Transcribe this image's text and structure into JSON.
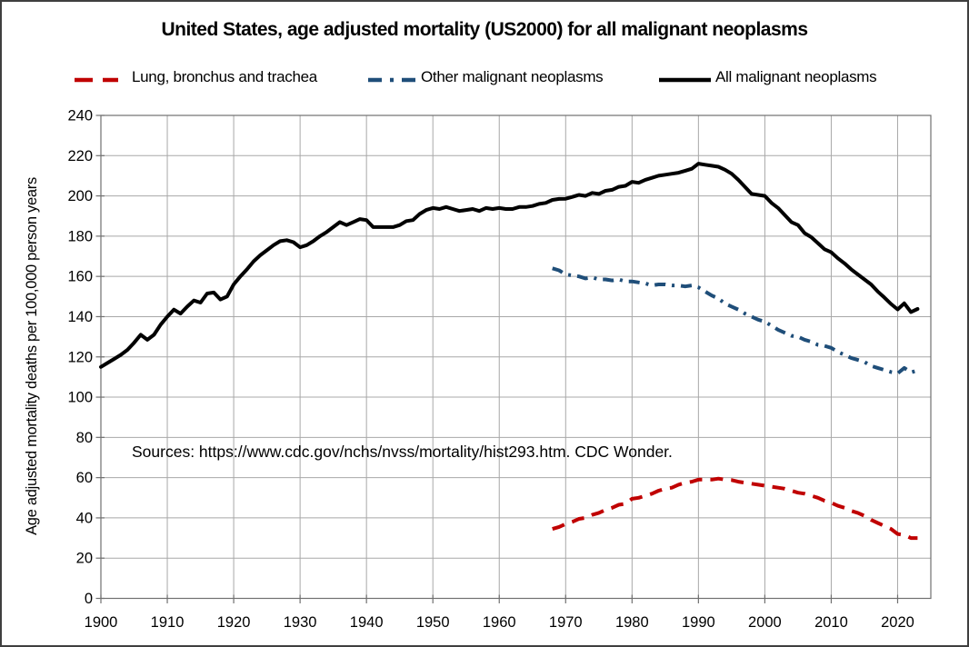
{
  "chart_data": {
    "type": "line",
    "title": "United States, age adjusted mortality (US2000) for all malignant neoplasms",
    "xlabel": "",
    "ylabel": "Age adjusted mortality deaths per 100,000 person years",
    "annotation": "Sources: https://www.cdc.gov/nchs/nvss/mortality/hist293.htm. CDC Wonder.",
    "xlim": [
      1900,
      2025
    ],
    "ylim": [
      0,
      240
    ],
    "grid": true,
    "legend_position": "top",
    "x_ticks": [
      1900,
      1910,
      1920,
      1930,
      1940,
      1950,
      1960,
      1970,
      1980,
      1990,
      2000,
      2010,
      2020
    ],
    "y_ticks": [
      0,
      20,
      40,
      60,
      80,
      100,
      120,
      140,
      160,
      180,
      200,
      220,
      240
    ],
    "colors": {
      "lung": "#C00000",
      "other": "#1F4E79",
      "all": "#000000",
      "gridline": "#A8A8A8",
      "axis": "#707070"
    },
    "series": [
      {
        "id": "lung",
        "name": "Lung, bronchus and trachea",
        "color": "#C00000",
        "style": "dashed",
        "start_year": 1968,
        "values": [
          34.5,
          35.5,
          37,
          38,
          39.5,
          40,
          41.5,
          42.5,
          44,
          45,
          46.5,
          47,
          49.5,
          50,
          51,
          52,
          53.5,
          54.5,
          55,
          56.5,
          57.5,
          58,
          59,
          59,
          59,
          59.5,
          59,
          58.8,
          58,
          57.5,
          57,
          56.5,
          56,
          55.5,
          55,
          54.5,
          53.5,
          52.5,
          52,
          51,
          50,
          48.5,
          47.5,
          46,
          45,
          43.5,
          42.5,
          41,
          39,
          37.5,
          36,
          34.5,
          32,
          31.5,
          30,
          30
        ]
      },
      {
        "id": "other",
        "name": "Other malignant neoplasms",
        "color": "#1F4E79",
        "style": "dash-dot",
        "start_year": 1968,
        "values": [
          164,
          163,
          161,
          160.5,
          160,
          159,
          159.5,
          158.5,
          158.5,
          158,
          158.5,
          157.5,
          157.5,
          157,
          156.5,
          155.5,
          156,
          156,
          155.5,
          155.5,
          155,
          155.5,
          154.5,
          152.5,
          150.5,
          149,
          146.5,
          145,
          143.5,
          141.5,
          140,
          138.5,
          137.5,
          135.5,
          133.5,
          132,
          130.5,
          130,
          128.5,
          127.5,
          126,
          125.5,
          124.5,
          122.5,
          121,
          119.5,
          118.5,
          117.5,
          115.5,
          114.5,
          113.5,
          112.5,
          111.8,
          114.5,
          112.3,
          113.3
        ]
      },
      {
        "id": "all",
        "name": "All malignant neoplasms",
        "color": "#000000",
        "style": "solid",
        "start_year": 1900,
        "values": [
          115,
          117,
          119,
          121,
          123.5,
          127,
          131,
          128.5,
          131,
          136,
          140,
          143.5,
          141.5,
          145,
          148,
          147,
          151.5,
          152,
          148.5,
          150,
          156,
          160,
          163.5,
          167.5,
          170.5,
          173,
          175.5,
          177.5,
          178,
          177,
          174.5,
          175.5,
          177.5,
          180,
          182,
          184.5,
          187,
          185.5,
          187,
          188.5,
          188,
          184.5,
          184.5,
          184.5,
          184.5,
          185.5,
          187.5,
          188,
          191,
          193,
          194,
          193.5,
          194.5,
          193.5,
          192.5,
          193,
          193.5,
          192.5,
          194,
          193.5,
          194,
          193.5,
          193.5,
          194.5,
          194.5,
          195,
          196,
          196.5,
          198,
          198.5,
          198.6,
          199.5,
          200.5,
          200,
          201.5,
          201,
          202.5,
          203,
          204.5,
          205,
          207,
          206.5,
          208,
          209,
          210,
          210.5,
          211,
          211.5,
          212.5,
          213.5,
          216,
          215.5,
          215,
          214.5,
          213,
          211,
          208,
          204.5,
          201,
          200.5,
          200,
          196.5,
          194,
          190.5,
          187,
          185.5,
          181.5,
          179.5,
          176.5,
          173.5,
          172,
          169,
          166.5,
          163.5,
          161,
          158.5,
          156,
          152.5,
          149.5,
          146.3,
          143.6,
          146.6,
          142.3,
          143.8
        ]
      }
    ]
  }
}
